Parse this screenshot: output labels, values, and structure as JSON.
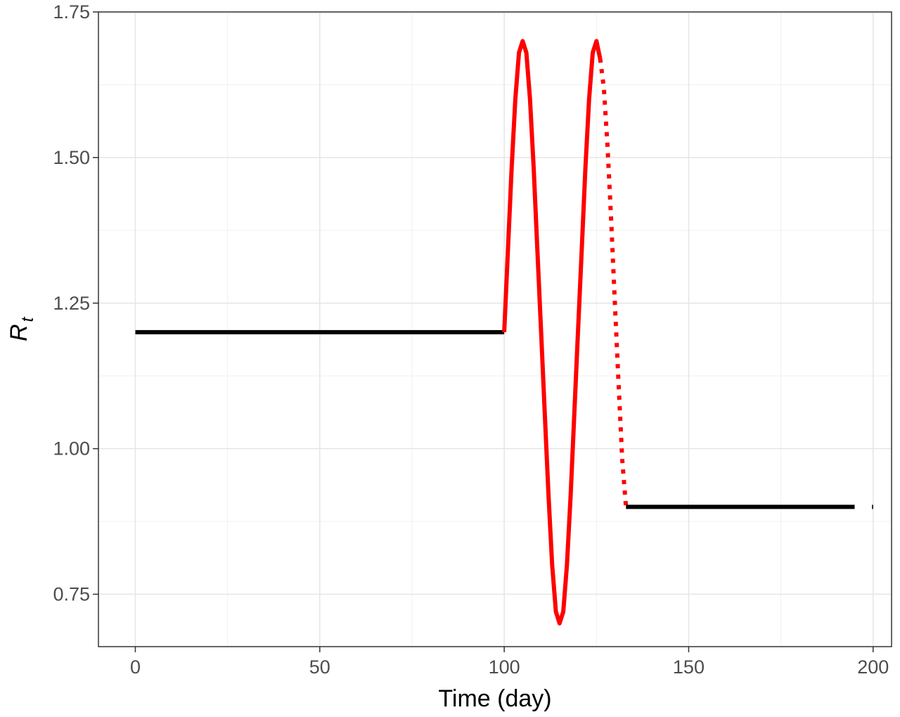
{
  "chart_data": {
    "type": "line",
    "xlabel": "Time (day)",
    "ylabel": "R",
    "ylabel_subscript": "t",
    "xlim": [
      -10,
      205
    ],
    "ylim": [
      0.66,
      1.75
    ],
    "x_ticks": [
      0,
      50,
      100,
      150,
      200
    ],
    "x_tick_labels": [
      "0",
      "50",
      "100",
      "150",
      "200"
    ],
    "y_ticks": [
      0.75,
      1.0,
      1.25,
      1.5,
      1.75
    ],
    "y_tick_labels": [
      "0.75",
      "1.00",
      "1.25",
      "1.50",
      "1.75"
    ],
    "grid": true,
    "series": [
      {
        "segment": "baseline-before",
        "color": "#000000",
        "style": "solid",
        "x": [
          0,
          100
        ],
        "y": [
          1.2,
          1.2
        ]
      },
      {
        "segment": "oscillation",
        "color": "#ff0000",
        "style": "solid",
        "x": [
          100,
          102,
          103,
          104,
          105,
          106,
          107,
          108,
          109,
          110,
          111,
          112,
          113,
          114,
          115,
          116,
          117,
          118,
          119,
          120,
          121,
          122,
          123,
          124,
          125,
          126
        ],
        "y": [
          1.2,
          1.48,
          1.6,
          1.68,
          1.7,
          1.68,
          1.6,
          1.48,
          1.34,
          1.2,
          1.06,
          0.92,
          0.8,
          0.72,
          0.7,
          0.72,
          0.8,
          0.92,
          1.06,
          1.2,
          1.34,
          1.48,
          1.6,
          1.68,
          1.7,
          1.67
        ]
      },
      {
        "segment": "transition",
        "color": "#ff0000",
        "style": "dotted",
        "x": [
          126,
          127,
          128,
          129,
          130,
          131,
          132,
          133
        ],
        "y": [
          1.67,
          1.62,
          1.52,
          1.39,
          1.25,
          1.11,
          0.98,
          0.9
        ]
      },
      {
        "segment": "baseline-after",
        "color": "#000000",
        "style": "solid",
        "x": [
          133,
          195
        ],
        "y": [
          0.9,
          0.9
        ]
      },
      {
        "segment": "final-point",
        "color": "#000000",
        "style": "solid",
        "x": [
          199.7,
          200
        ],
        "y": [
          0.9,
          0.9
        ]
      }
    ]
  }
}
